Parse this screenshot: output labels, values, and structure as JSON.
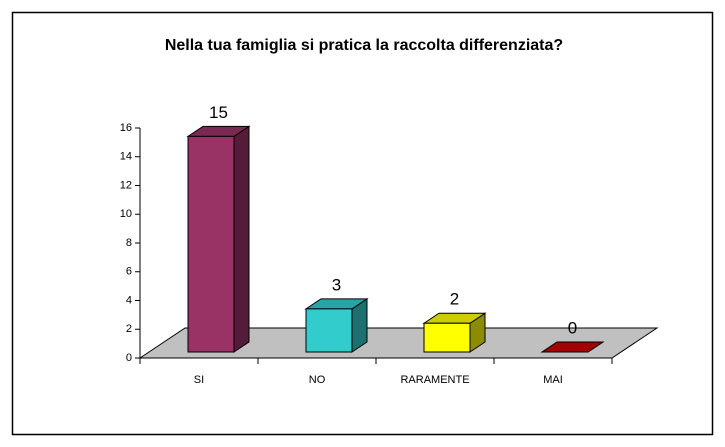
{
  "chart_data": {
    "type": "bar3d",
    "title": "Nella tua famiglia si pratica la raccolta differenziata?",
    "categories": [
      "SI",
      "NO",
      "RARAMENTE",
      "MAI"
    ],
    "values": [
      15,
      3,
      2,
      0
    ],
    "colors": [
      "#993366",
      "#33cccc",
      "#ffff00",
      "#cc0000"
    ],
    "ylim": [
      0,
      16
    ],
    "yticks": [
      0,
      2,
      4,
      6,
      8,
      10,
      12,
      14,
      16
    ]
  }
}
